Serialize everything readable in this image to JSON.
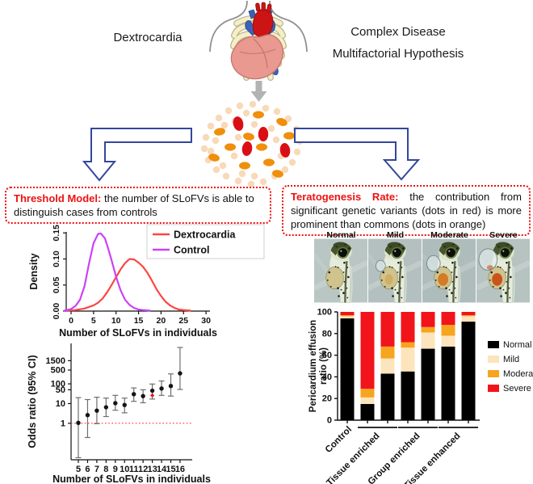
{
  "header": {
    "left_label": "Dextrocardia",
    "right_label_line1": "Complex Disease",
    "right_label_line2": "Multifactorial Hypothesis"
  },
  "left_callout": {
    "title": "Threshold Model:",
    "body": "the number of SLoFVs is able to distinguish cases from controls"
  },
  "right_callout": {
    "title": "Teratogenesis Rate:",
    "body": "the contribution from significant genetic variants (dots in red) is more prominent than commons (dots in orange)"
  },
  "phenotype_labels": [
    "Normal",
    "Mild",
    "Moderate",
    "Severe"
  ],
  "colors": {
    "arrow_outline_blue": "#33479b",
    "callout_border_red": "#ef1010",
    "dot_red": "#d90f15",
    "dot_orange": "#ef8f0c",
    "dot_pale": "#f8d9b8",
    "gray_arrow": "#b3b3b3"
  },
  "chart_data": [
    {
      "id": "slofv_density",
      "type": "line",
      "xlabel": "Number of SLoFVs in individuals",
      "ylabel": "Density",
      "xlim": [
        -1.5,
        31.5
      ],
      "ylim": [
        0,
        0.155
      ],
      "xticks": [
        0,
        5,
        10,
        15,
        20,
        25,
        30
      ],
      "yticks": [
        0,
        0.05,
        0.1,
        0.15
      ],
      "ytick_labels": [
        "0.00",
        "0.05",
        "0.10",
        "0.15"
      ],
      "legend_position": "top-right",
      "series": [
        {
          "name": "Dextrocardia",
          "color": "#fb4642",
          "points": [
            [
              -1,
              0.001
            ],
            [
              1,
              0.002
            ],
            [
              3,
              0.005
            ],
            [
              5,
              0.011
            ],
            [
              6,
              0.016
            ],
            [
              7,
              0.024
            ],
            [
              8,
              0.036
            ],
            [
              9,
              0.05
            ],
            [
              10,
              0.065
            ],
            [
              11,
              0.08
            ],
            [
              12,
              0.092
            ],
            [
              13,
              0.1
            ],
            [
              14,
              0.099
            ],
            [
              15,
              0.093
            ],
            [
              16,
              0.085
            ],
            [
              17,
              0.073
            ],
            [
              18,
              0.058
            ],
            [
              19,
              0.042
            ],
            [
              20,
              0.029
            ],
            [
              21,
              0.018
            ],
            [
              22,
              0.011
            ],
            [
              23,
              0.006
            ],
            [
              24,
              0.003
            ],
            [
              25,
              0.002
            ],
            [
              26.5,
              0.001
            ]
          ]
        },
        {
          "name": "Control",
          "color": "#cb42f5",
          "points": [
            [
              -1.5,
              0.001
            ],
            [
              0,
              0.004
            ],
            [
              1,
              0.01
            ],
            [
              2,
              0.022
            ],
            [
              3,
              0.048
            ],
            [
              4,
              0.092
            ],
            [
              5,
              0.13
            ],
            [
              6,
              0.148
            ],
            [
              6.6,
              0.149
            ],
            [
              7.5,
              0.14
            ],
            [
              8,
              0.127
            ],
            [
              9,
              0.098
            ],
            [
              10,
              0.066
            ],
            [
              11,
              0.04
            ],
            [
              12,
              0.022
            ],
            [
              13,
              0.012
            ],
            [
              14,
              0.006
            ],
            [
              15,
              0.003
            ],
            [
              16,
              0.002
            ],
            [
              17.5,
              0.001
            ]
          ]
        }
      ]
    },
    {
      "id": "slofv_odds_ratio",
      "type": "scatter",
      "xlabel": "Number of SLoFVs in individuals",
      "ylabel": "Odds ratio (95% CI)",
      "yscale": "log",
      "yticks": [
        1,
        10,
        50,
        100,
        500,
        1500
      ],
      "xticks": [
        5,
        6,
        7,
        8,
        9,
        10,
        11,
        12,
        13,
        14,
        15,
        16
      ],
      "reference_line_y": 1,
      "points": [
        {
          "x": 5,
          "or": 1.05,
          "ci_low": 0.018,
          "ci_high": 20
        },
        {
          "x": 6,
          "or": 2.6,
          "ci_low": 0.19,
          "ci_high": 16
        },
        {
          "x": 7,
          "or": 4.4,
          "ci_low": 0.95,
          "ci_high": 21
        },
        {
          "x": 8,
          "or": 6.5,
          "ci_low": 2.2,
          "ci_high": 19
        },
        {
          "x": 9,
          "or": 10.5,
          "ci_low": 4.6,
          "ci_high": 26
        },
        {
          "x": 10,
          "or": 8.5,
          "ci_low": 3.4,
          "ci_high": 19
        },
        {
          "x": 11,
          "or": 30,
          "ci_low": 13,
          "ci_high": 62
        },
        {
          "x": 12,
          "or": 24,
          "ci_low": 11,
          "ci_high": 50
        },
        {
          "x": 13,
          "or": 45,
          "ci_low": 17,
          "ci_high": 98
        },
        {
          "x": 14,
          "or": 58,
          "ci_low": 26,
          "ci_high": 140
        },
        {
          "x": 15,
          "or": 78,
          "ci_low": 24,
          "ci_high": 320
        },
        {
          "x": 16,
          "or": 340,
          "ci_low": 52,
          "ci_high": 7000
        }
      ],
      "significance_marker": {
        "x": 13,
        "y": 26,
        "color": "#e81010"
      }
    },
    {
      "id": "pericardium_effusion",
      "type": "bar",
      "stacked": true,
      "ylabel_lines": [
        "Pericardium effusion",
        "ratio (%)"
      ],
      "ylim": [
        0,
        100
      ],
      "yticks": [
        0,
        20,
        40,
        60,
        80,
        100
      ],
      "stack_order": [
        "Normal",
        "Mild",
        "Moderate",
        "Severe"
      ],
      "series_colors": {
        "Normal": "#000000",
        "Mild": "#fce4bc",
        "Moderate": "#f6a51f",
        "Severe": "#f2141b"
      },
      "legend": [
        "Normal",
        "Mild",
        "Moderate",
        "Severe"
      ],
      "bars": [
        {
          "group": "Control",
          "values": {
            "Normal": 94,
            "Mild": 2,
            "Moderate": 1,
            "Severe": 3
          }
        },
        {
          "group": "Tissue enriched",
          "values": {
            "Normal": 15,
            "Mild": 6,
            "Moderate": 8,
            "Severe": 71
          }
        },
        {
          "group": "Tissue enriched",
          "values": {
            "Normal": 43,
            "Mild": 14,
            "Moderate": 11,
            "Severe": 32
          }
        },
        {
          "group": "Group enriched",
          "values": {
            "Normal": 45,
            "Mild": 22,
            "Moderate": 5,
            "Severe": 28
          }
        },
        {
          "group": "Group enriched",
          "values": {
            "Normal": 66,
            "Mild": 15,
            "Moderate": 5,
            "Severe": 14
          }
        },
        {
          "group": "Tissue enhanced",
          "values": {
            "Normal": 68,
            "Mild": 10,
            "Moderate": 10,
            "Severe": 12
          }
        },
        {
          "group": "Tissue enhanced",
          "values": {
            "Normal": 91,
            "Mild": 5,
            "Moderate": 1,
            "Severe": 3
          }
        }
      ],
      "group_labels": [
        {
          "label": "Control",
          "bars": [
            0
          ],
          "underline": false
        },
        {
          "label": "Tissue enriched",
          "bars": [
            1,
            2
          ],
          "underline": true
        },
        {
          "label": "Group enriched",
          "bars": [
            3,
            4
          ],
          "underline": true
        },
        {
          "label": "Tissue enhanced",
          "bars": [
            5,
            6
          ],
          "underline": true
        }
      ]
    }
  ]
}
